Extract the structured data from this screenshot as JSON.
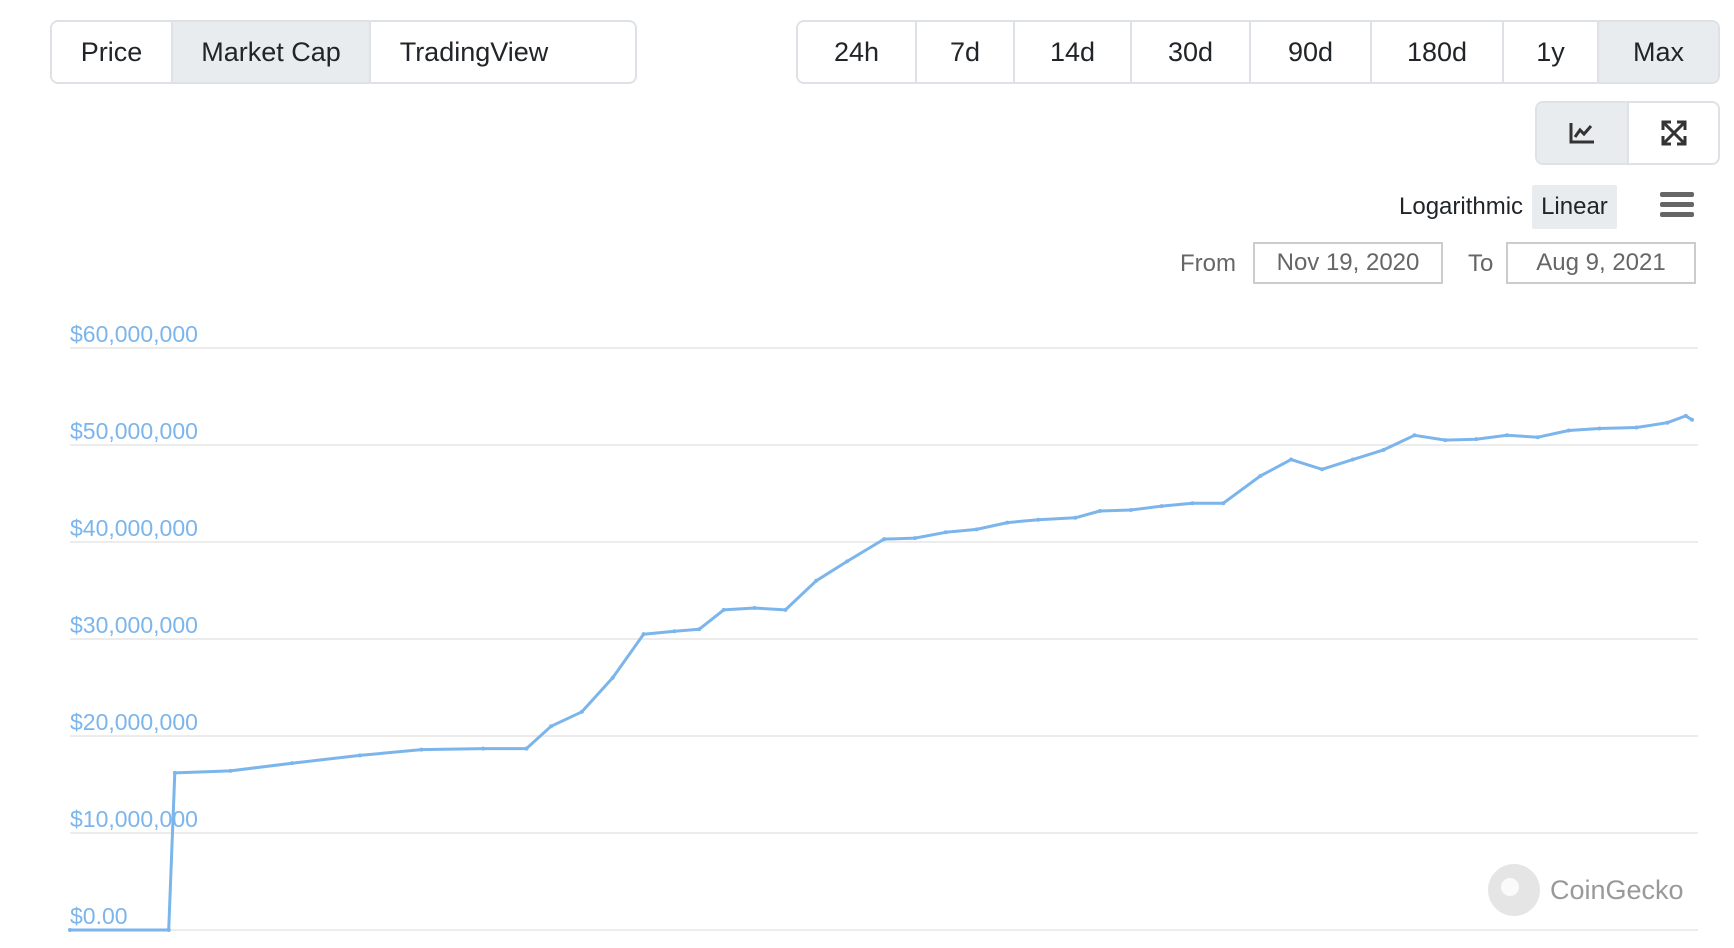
{
  "type_tabs": [
    {
      "label": "Price",
      "active": false
    },
    {
      "label": "Market Cap",
      "active": true
    },
    {
      "label": "TradingView",
      "active": false
    }
  ],
  "range_tabs": [
    {
      "label": "24h",
      "active": false
    },
    {
      "label": "7d",
      "active": false
    },
    {
      "label": "14d",
      "active": false
    },
    {
      "label": "30d",
      "active": false
    },
    {
      "label": "90d",
      "active": false
    },
    {
      "label": "180d",
      "active": false
    },
    {
      "label": "1y",
      "active": false
    },
    {
      "label": "Max",
      "active": true
    }
  ],
  "view_tabs": [
    {
      "icon": "line-chart-icon",
      "active": true
    },
    {
      "icon": "expand-icon",
      "active": false
    }
  ],
  "scale": {
    "log_label": "Logarithmic",
    "linear_label": "Linear",
    "selected": "Linear"
  },
  "date_range": {
    "from_label": "From",
    "from_value": "Nov 19, 2020",
    "to_label": "To",
    "to_value": "Aug 9, 2021"
  },
  "watermark": {
    "text": "CoinGecko"
  },
  "colors": {
    "line": "#7cb5ec",
    "axis_label": "#7cb5ec",
    "grid": "#e6e6e6",
    "active_tab": "#e9ecef"
  },
  "chart_data": {
    "type": "line",
    "x_range": [
      "Nov 19, 2020",
      "Aug 9, 2021"
    ],
    "ylim": [
      0,
      60000000
    ],
    "ytick_labels": [
      "$0.00",
      "$10,000,000",
      "$20,000,000",
      "$30,000,000",
      "$40,000,000",
      "$50,000,000",
      "$60,000,000"
    ],
    "ytick_values": [
      0,
      10000000,
      20000000,
      30000000,
      40000000,
      50000000,
      60000000
    ],
    "grid": true,
    "series": [
      {
        "x": [
          "2020-11-19",
          "2020-12-05",
          "2020-12-06",
          "2020-12-15",
          "2020-12-25",
          "2021-01-05",
          "2021-01-15",
          "2021-01-25",
          "2021-02-01",
          "2021-02-05",
          "2021-02-10",
          "2021-02-15",
          "2021-02-20",
          "2021-02-25",
          "2021-03-01",
          "2021-03-05",
          "2021-03-10",
          "2021-03-15",
          "2021-03-20",
          "2021-03-25",
          "2021-03-31",
          "2021-04-05",
          "2021-04-10",
          "2021-04-15",
          "2021-04-20",
          "2021-04-25",
          "2021-05-01",
          "2021-05-05",
          "2021-05-10",
          "2021-05-15",
          "2021-05-20",
          "2021-05-25",
          "2021-05-31",
          "2021-06-05",
          "2021-06-10",
          "2021-06-15",
          "2021-06-20",
          "2021-06-25",
          "2021-06-30",
          "2021-07-05",
          "2021-07-10",
          "2021-07-15",
          "2021-07-20",
          "2021-07-25",
          "2021-07-31",
          "2021-08-05",
          "2021-08-08",
          "2021-08-09"
        ],
        "values": [
          0,
          0,
          16200000,
          16400000,
          17200000,
          18000000,
          18600000,
          18700000,
          18700000,
          21000000,
          22500000,
          26000000,
          30500000,
          30800000,
          31000000,
          33000000,
          33200000,
          33000000,
          36000000,
          38000000,
          40300000,
          40400000,
          41000000,
          41300000,
          42000000,
          42300000,
          42500000,
          43200000,
          43300000,
          43700000,
          44000000,
          44000000,
          46800000,
          48500000,
          47500000,
          48500000,
          49500000,
          51000000,
          50500000,
          50600000,
          51000000,
          50800000,
          51500000,
          51700000,
          51800000,
          52300000,
          53000000,
          52600000
        ]
      }
    ]
  }
}
